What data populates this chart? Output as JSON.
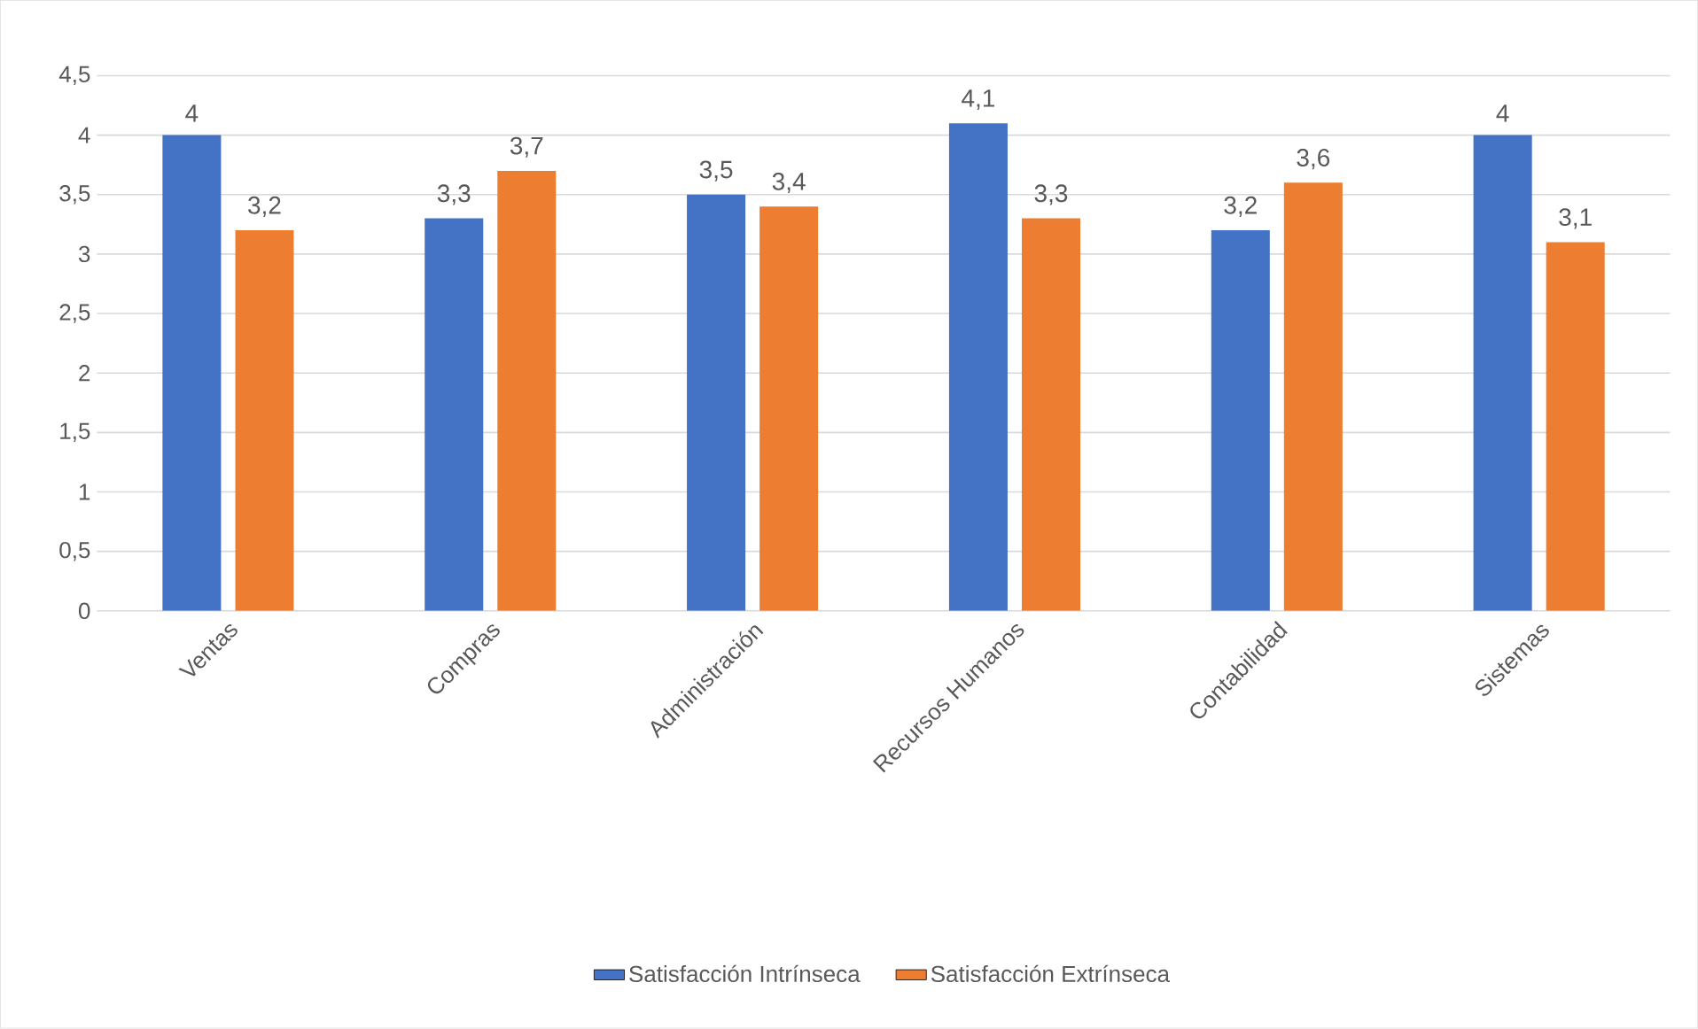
{
  "chart_data": {
    "type": "bar",
    "categories": [
      "Ventas",
      "Compras",
      "Administración",
      "Recursos Humanos",
      "Contabilidad",
      "Sistemas"
    ],
    "series": [
      {
        "name": "Satisfacción Intrínseca",
        "color": "#4472c4",
        "values": [
          4,
          3.3,
          3.5,
          4.1,
          3.2,
          4
        ],
        "value_labels": [
          "4",
          "3,3",
          "3,5",
          "4,1",
          "3,2",
          "4"
        ]
      },
      {
        "name": "Satisfacción Extrínseca",
        "color": "#ed7d31",
        "values": [
          3.2,
          3.7,
          3.4,
          3.3,
          3.6,
          3.1
        ],
        "value_labels": [
          "3,2",
          "3,7",
          "3,4",
          "3,3",
          "3,6",
          "3,1"
        ]
      }
    ],
    "ylim": [
      0,
      4.5
    ],
    "yticks": [
      0,
      {
        "value": 0.5,
        "label": "0,5"
      },
      1,
      {
        "value": 1.5,
        "label": "1,5"
      },
      2,
      {
        "value": 2.5,
        "label": "2,5"
      },
      3,
      {
        "value": 3.5,
        "label": "3,5"
      },
      4,
      {
        "value": 4.5,
        "label": "4,5"
      }
    ],
    "grid": "y",
    "legend": "bottom"
  }
}
